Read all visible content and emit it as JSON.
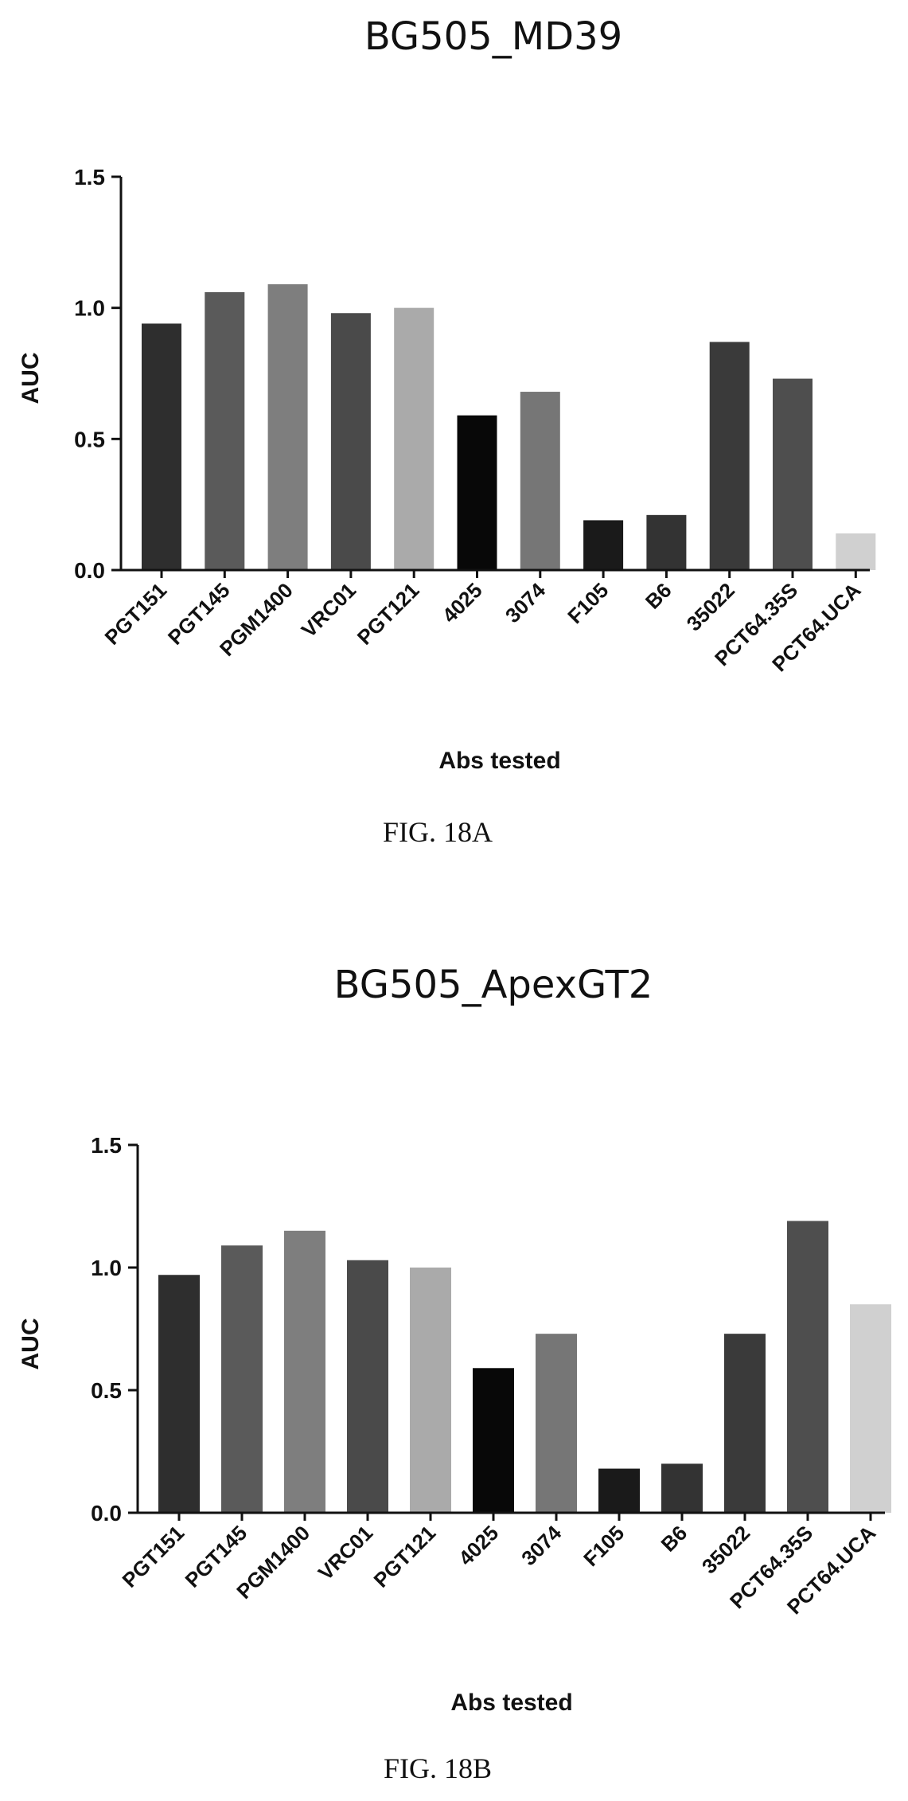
{
  "chart_data": [
    {
      "type": "bar",
      "title": "BG505_MD39",
      "xlabel": "Abs tested",
      "ylabel": "AUC",
      "caption": "FIG. 18A",
      "ylim": [
        0,
        1.5
      ],
      "yticks": [
        "0.0",
        "0.5",
        "1.0",
        "1.5"
      ],
      "grid": false,
      "categories": [
        "PGT151",
        "PGT145",
        "PGM1400",
        "VRC01",
        "PGT121",
        "4025",
        "3074",
        "F105",
        "B6",
        "35022",
        "PCT64.35S",
        "PCT64.UCA"
      ],
      "values": [
        0.94,
        1.06,
        1.09,
        0.98,
        1.0,
        0.59,
        0.68,
        0.19,
        0.21,
        0.87,
        0.73,
        0.14
      ],
      "colors": [
        "#2e2e2e",
        "#5a5a5a",
        "#7e7e7e",
        "#4a4a4a",
        "#aaaaaa",
        "#080808",
        "#767676",
        "#1a1a1a",
        "#333333",
        "#3a3a3a",
        "#4e4e4e",
        "#d0d0d0"
      ]
    },
    {
      "type": "bar",
      "title": "BG505_ApexGT2",
      "xlabel": "Abs tested",
      "ylabel": "AUC",
      "caption": "FIG. 18B",
      "ylim": [
        0,
        1.5
      ],
      "yticks": [
        "0.0",
        "0.5",
        "1.0",
        "1.5"
      ],
      "grid": false,
      "categories": [
        "PGT151",
        "PGT145",
        "PGM1400",
        "VRC01",
        "PGT121",
        "4025",
        "3074",
        "F105",
        "B6",
        "35022",
        "PCT64.35S",
        "PCT64.UCA"
      ],
      "values": [
        0.97,
        1.09,
        1.15,
        1.03,
        1.0,
        0.59,
        0.73,
        0.18,
        0.2,
        0.73,
        1.19,
        0.85
      ],
      "colors": [
        "#2e2e2e",
        "#5a5a5a",
        "#7e7e7e",
        "#4a4a4a",
        "#aaaaaa",
        "#080808",
        "#767676",
        "#1a1a1a",
        "#333333",
        "#3a3a3a",
        "#4e4e4e",
        "#d0d0d0"
      ]
    }
  ]
}
